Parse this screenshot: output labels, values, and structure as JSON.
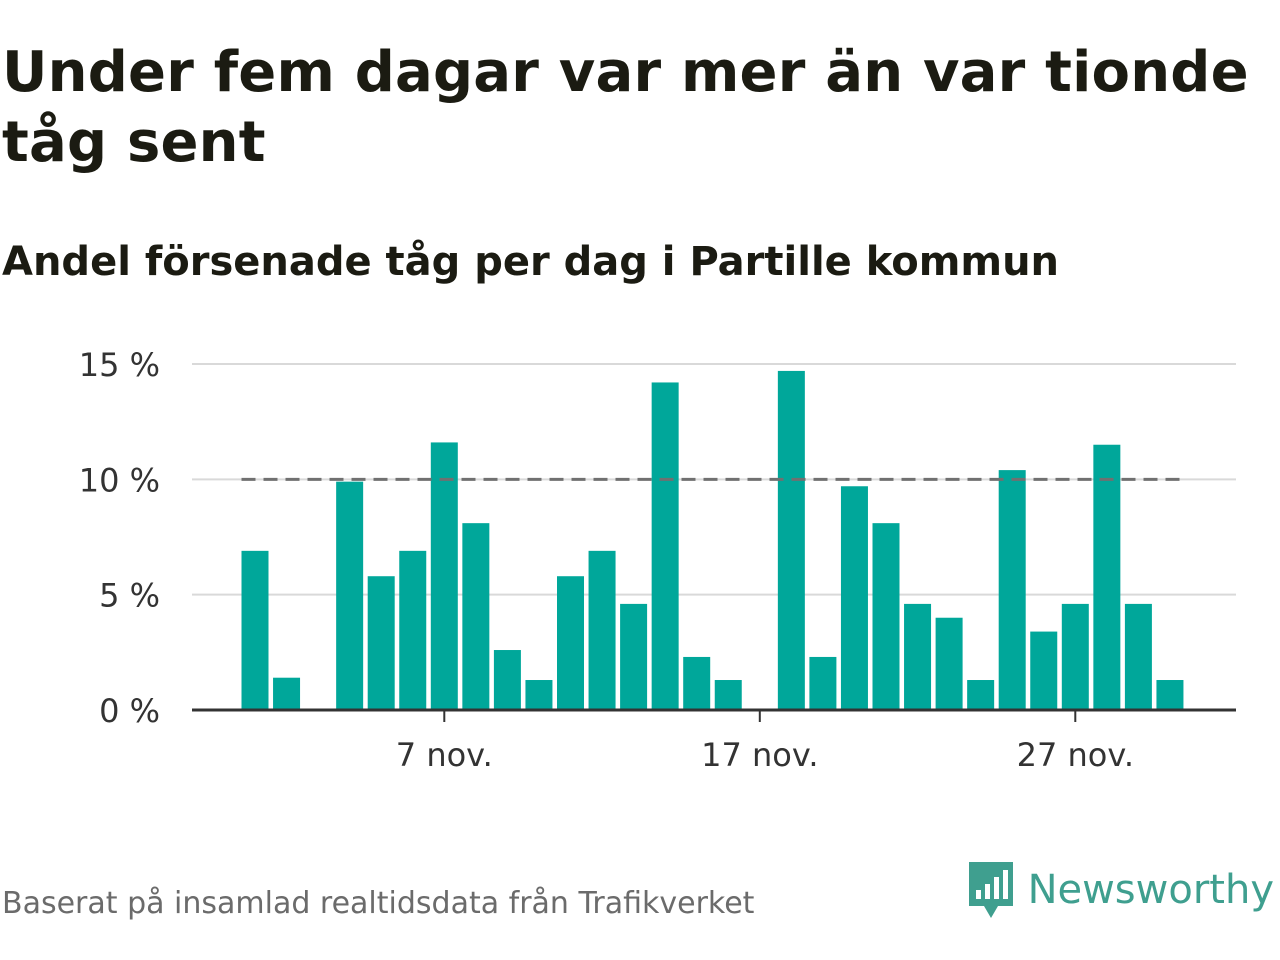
{
  "title": "Under fem dagar var mer än var tionde tåg sent",
  "subtitle": "Andel försenade tåg per dag i Partille kommun",
  "source": "Baserat på insamlad realtidsdata från Trafikverket",
  "brand": {
    "name": "Newsworthy",
    "logo_icon": "bar-chart-speech-bubble-icon"
  },
  "colors": {
    "bar": "#00a79a",
    "reference_line": "#707070",
    "grid": "#d9d9d9",
    "axis": "#333333",
    "text": "#1b1b12",
    "brand": "#3f9f8f"
  },
  "chart_data": {
    "type": "bar",
    "x": [
      "1 nov.",
      "2 nov.",
      "3 nov.",
      "4 nov.",
      "5 nov.",
      "6 nov.",
      "7 nov.",
      "8 nov.",
      "9 nov.",
      "10 nov.",
      "11 nov.",
      "12 nov.",
      "13 nov.",
      "14 nov.",
      "15 nov.",
      "16 nov.",
      "17 nov.",
      "18 nov.",
      "19 nov.",
      "20 nov.",
      "21 nov.",
      "22 nov.",
      "23 nov.",
      "24 nov.",
      "25 nov.",
      "26 nov.",
      "27 nov.",
      "28 nov.",
      "29 nov.",
      "30 nov."
    ],
    "values": [
      6.9,
      1.4,
      null,
      9.9,
      5.8,
      6.9,
      11.6,
      8.1,
      2.6,
      1.3,
      5.8,
      6.9,
      4.6,
      14.2,
      2.3,
      1.3,
      null,
      14.7,
      2.3,
      9.7,
      8.1,
      4.6,
      4.0,
      1.3,
      10.4,
      3.4,
      4.6,
      11.5,
      4.6,
      1.3
    ],
    "ylim": [
      0,
      15
    ],
    "yticks": [
      0,
      5,
      10,
      15
    ],
    "ytick_labels": [
      "0 %",
      "5 %",
      "10 %",
      "15 %"
    ],
    "xticks": [
      "7 nov.",
      "17 nov.",
      "27 nov."
    ],
    "reference_line": {
      "value": 10,
      "style": "dashed"
    },
    "grid": "horizontal",
    "legend": "none"
  }
}
